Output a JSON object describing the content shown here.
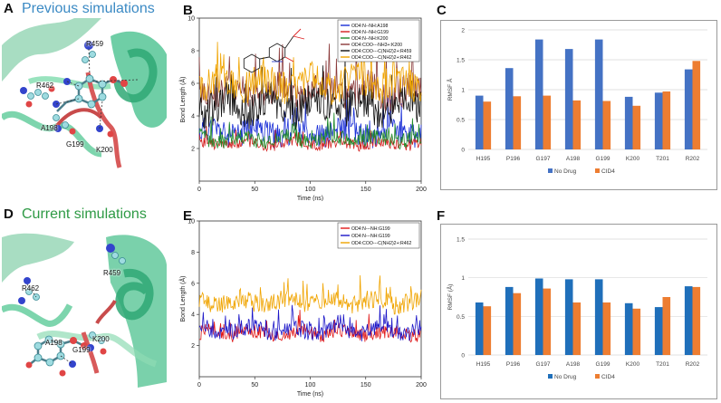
{
  "panels": {
    "A": {
      "letter": "A",
      "heading": "Previous simulations",
      "heading_color": "#3b8ac4",
      "residues": [
        "R459",
        "R462",
        "A198",
        "G199",
        "K200"
      ]
    },
    "B": {
      "letter": "B"
    },
    "C": {
      "letter": "C"
    },
    "D": {
      "letter": "D",
      "heading": "Current simulations",
      "heading_color": "#2e9a45",
      "residues": [
        "R459",
        "R462",
        "A198",
        "G199",
        "K200"
      ]
    },
    "E": {
      "letter": "E"
    },
    "F": {
      "letter": "F"
    }
  },
  "chart_data": [
    {
      "id": "B",
      "type": "line",
      "xlabel": "Time (ns)",
      "ylabel": "Bond Length (Å)",
      "xlim": [
        0,
        200
      ],
      "ylim": [
        0,
        10
      ],
      "xticks": [
        0,
        50,
        100,
        150,
        200
      ],
      "yticks": [
        2,
        4,
        6,
        8,
        10
      ],
      "legend": "top-right",
      "series": [
        {
          "name": "OD4:N--NH:A198",
          "color": "#1a2fd6",
          "mean": 3.0,
          "amp": 0.8,
          "seed": 11
        },
        {
          "name": "OD4:N--NH:G199",
          "color": "#d42020",
          "mean": 2.3,
          "amp": 0.35,
          "seed": 23
        },
        {
          "name": "OD4:N--NH:K200",
          "color": "#1f8a2a",
          "mean": 2.6,
          "amp": 0.5,
          "seed": 37
        },
        {
          "name": "OD4:COO---NH3+:K200",
          "color": "#8b3a3a",
          "mean": 5.5,
          "amp": 1.0,
          "seed": 41
        },
        {
          "name": "OD4:COO---C(NH2)2+:R459",
          "color": "#111111",
          "mean": 4.6,
          "amp": 1.1,
          "seed": 53
        },
        {
          "name": "OD4:COO---C(NH2)2+:R462",
          "color": "#f0a400",
          "mean": 6.0,
          "amp": 1.0,
          "seed": 67
        }
      ]
    },
    {
      "id": "C",
      "type": "bar",
      "categories": [
        "H195",
        "P196",
        "G197",
        "A198",
        "G199",
        "K200",
        "T201",
        "R202"
      ],
      "series": [
        {
          "name": "No Drug",
          "color": "#4472c4",
          "values": [
            0.9,
            1.36,
            1.84,
            1.68,
            1.84,
            0.88,
            0.95,
            1.34
          ]
        },
        {
          "name": "CID4",
          "color": "#ed7d31",
          "values": [
            0.8,
            0.89,
            0.9,
            0.82,
            0.81,
            0.73,
            0.97,
            1.48
          ]
        }
      ],
      "ylabel": "RMSF Å",
      "ylim": [
        0,
        2
      ],
      "yticks": [
        0,
        0.5,
        1,
        1.5,
        2
      ],
      "ytick_labels": [
        "0",
        "0.5",
        "1",
        "1.5",
        "2"
      ],
      "legend": "bottom"
    },
    {
      "id": "E",
      "type": "line",
      "xlabel": "Time (ns)",
      "ylabel": "Bond Length (Å)",
      "xlim": [
        0,
        200
      ],
      "ylim": [
        0,
        10
      ],
      "xticks": [
        0,
        50,
        100,
        150,
        200
      ],
      "yticks": [
        2,
        4,
        6,
        8,
        10
      ],
      "legend": "top-right",
      "series": [
        {
          "name": "OD4:N---NH:G199",
          "color": "#e01818",
          "mean": 2.8,
          "amp": 0.45,
          "seed": 71
        },
        {
          "name": "OD4:N---NH:G199",
          "color": "#1c16c8",
          "mean": 3.0,
          "amp": 0.55,
          "seed": 83
        },
        {
          "name": "OD4:COO---C(NH2)2+:R462",
          "color": "#f0a400",
          "mean": 4.8,
          "amp": 0.6,
          "seed": 97
        }
      ]
    },
    {
      "id": "F",
      "type": "bar",
      "categories": [
        "H195",
        "P196",
        "G197",
        "A198",
        "G199",
        "K200",
        "T201",
        "R202"
      ],
      "series": [
        {
          "name": "No Drug",
          "color": "#1f6fba",
          "values": [
            0.68,
            0.88,
            0.99,
            0.98,
            0.98,
            0.67,
            0.62,
            0.89
          ]
        },
        {
          "name": "CID4",
          "color": "#ed7d31",
          "values": [
            0.63,
            0.8,
            0.86,
            0.68,
            0.68,
            0.6,
            0.75,
            0.88
          ]
        }
      ],
      "ylabel": "RMSF (Å)",
      "ylim": [
        0,
        1.5
      ],
      "yticks": [
        0,
        0.5,
        1,
        1.5
      ],
      "ytick_labels": [
        "0",
        "0.5",
        "1",
        "1.5"
      ],
      "legend": "bottom"
    }
  ]
}
